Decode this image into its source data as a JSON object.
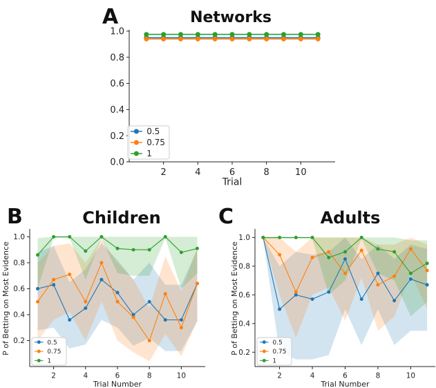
{
  "chart_data": [
    {
      "panel_letter": "A",
      "type": "line",
      "title": "Networks",
      "xlabel": "Trial",
      "ylabel": "",
      "xlim": [
        0,
        12
      ],
      "ylim": [
        0,
        1.0
      ],
      "xticks": [
        2,
        4,
        6,
        8,
        10
      ],
      "yticks": [
        0.0,
        0.2,
        0.4,
        0.6,
        0.8,
        1.0
      ],
      "ytick_labels": [
        "0.0",
        "0.2",
        "0.4",
        "0.6",
        "0.8",
        "1.0"
      ],
      "x": [
        1,
        2,
        3,
        4,
        5,
        6,
        7,
        8,
        9,
        10,
        11
      ],
      "legend_position": "lower-left",
      "series": [
        {
          "name": "0.5",
          "color": "#1f77b4",
          "values": [
            0.95,
            0.95,
            0.95,
            0.95,
            0.95,
            0.95,
            0.95,
            0.95,
            0.95,
            0.95,
            0.95
          ]
        },
        {
          "name": "0.75",
          "color": "#ff7f0e",
          "values": [
            0.94,
            0.94,
            0.94,
            0.94,
            0.94,
            0.94,
            0.94,
            0.94,
            0.94,
            0.94,
            0.94
          ]
        },
        {
          "name": "1",
          "color": "#2ca02c",
          "values": [
            0.975,
            0.975,
            0.975,
            0.975,
            0.975,
            0.975,
            0.975,
            0.975,
            0.975,
            0.975,
            0.975
          ]
        }
      ]
    },
    {
      "panel_letter": "B",
      "type": "line",
      "title": "Children",
      "xlabel": "Trial Number",
      "ylabel": "P of Betting on Most Evidence",
      "xlim": [
        0.5,
        11.5
      ],
      "ylim": [
        0,
        1.05
      ],
      "xticks": [
        2,
        4,
        6,
        8,
        10
      ],
      "yticks": [
        0.2,
        0.4,
        0.6,
        0.8,
        1.0
      ],
      "ytick_labels": [
        "0.2",
        "0.4",
        "0.6",
        "0.8",
        "1.0"
      ],
      "x": [
        1,
        2,
        3,
        4,
        5,
        6,
        7,
        8,
        9,
        10,
        11
      ],
      "legend_position": "lower-left",
      "series": [
        {
          "name": "0.5",
          "color": "#1f77b4",
          "values": [
            0.6,
            0.63,
            0.36,
            0.45,
            0.67,
            0.57,
            0.4,
            0.5,
            0.36,
            0.36,
            0.64
          ],
          "lower": [
            0.28,
            0.3,
            0.14,
            0.17,
            0.36,
            0.3,
            0.16,
            0.22,
            0.12,
            0.12,
            0.35
          ],
          "upper": [
            0.88,
            0.93,
            0.65,
            0.75,
            0.95,
            0.82,
            0.67,
            0.8,
            0.63,
            0.63,
            0.9
          ]
        },
        {
          "name": "0.75",
          "color": "#ff7f0e",
          "values": [
            0.5,
            0.67,
            0.71,
            0.5,
            0.8,
            0.5,
            0.38,
            0.2,
            0.56,
            0.3,
            0.64
          ],
          "lower": [
            0.2,
            0.36,
            0.42,
            0.2,
            0.5,
            0.2,
            0.11,
            0.04,
            0.25,
            0.08,
            0.35
          ],
          "upper": [
            0.8,
            0.93,
            0.95,
            0.8,
            0.98,
            0.8,
            0.67,
            0.45,
            0.85,
            0.58,
            0.92
          ]
        },
        {
          "name": "1",
          "color": "#2ca02c",
          "values": [
            0.86,
            1.0,
            1.0,
            0.89,
            1.0,
            0.91,
            0.9,
            0.9,
            1.0,
            0.88,
            0.91
          ],
          "lower": [
            0.6,
            0.99,
            0.99,
            0.67,
            0.99,
            0.72,
            0.7,
            0.7,
            0.99,
            0.6,
            0.72
          ],
          "upper": [
            0.99,
            1.0,
            1.0,
            1.0,
            1.0,
            1.0,
            1.0,
            1.0,
            1.0,
            1.0,
            1.0
          ]
        }
      ]
    },
    {
      "panel_letter": "C",
      "type": "line",
      "title": "Adults",
      "xlabel": "Trial Number",
      "ylabel": "P of Betting on Most Evidence",
      "xlim": [
        0.5,
        11.5
      ],
      "ylim": [
        0.1,
        1.05
      ],
      "xticks": [
        2,
        4,
        6,
        8,
        10
      ],
      "yticks": [
        0.2,
        0.4,
        0.6,
        0.8,
        1.0
      ],
      "ytick_labels": [
        "0.2",
        "0.4",
        "0.6",
        "0.8",
        "1.0"
      ],
      "x": [
        1,
        2,
        3,
        4,
        5,
        6,
        7,
        8,
        9,
        10,
        11
      ],
      "legend_position": "lower-left",
      "series": [
        {
          "name": "0.5",
          "color": "#1f77b4",
          "values": [
            1.0,
            0.5,
            0.6,
            0.57,
            0.62,
            0.85,
            0.57,
            0.75,
            0.56,
            0.71,
            0.67
          ],
          "lower": [
            0.99,
            0.2,
            0.15,
            0.15,
            0.18,
            0.5,
            0.25,
            0.5,
            0.25,
            0.35,
            0.35
          ],
          "upper": [
            1.0,
            0.8,
            0.9,
            0.88,
            0.9,
            1.0,
            0.85,
            0.95,
            0.85,
            0.95,
            0.92
          ]
        },
        {
          "name": "0.75",
          "color": "#ff7f0e",
          "values": [
            1.0,
            0.88,
            0.62,
            0.86,
            0.9,
            0.75,
            0.91,
            0.67,
            0.73,
            0.92,
            0.77
          ],
          "lower": [
            0.99,
            0.6,
            0.3,
            0.6,
            0.65,
            0.42,
            0.72,
            0.35,
            0.45,
            0.75,
            0.5
          ],
          "upper": [
            1.0,
            1.0,
            0.9,
            1.0,
            1.0,
            1.0,
            1.0,
            0.95,
            0.95,
            1.0,
            0.95
          ]
        },
        {
          "name": "1",
          "color": "#2ca02c",
          "values": [
            1.0,
            1.0,
            1.0,
            1.0,
            0.86,
            0.9,
            1.0,
            0.92,
            0.9,
            0.75,
            0.82
          ],
          "lower": [
            0.99,
            0.99,
            0.99,
            0.99,
            0.6,
            0.7,
            0.99,
            0.75,
            0.7,
            0.45,
            0.55
          ],
          "upper": [
            1.0,
            1.0,
            1.0,
            1.0,
            1.0,
            1.0,
            1.0,
            1.0,
            1.0,
            0.98,
            0.98
          ]
        }
      ]
    }
  ]
}
